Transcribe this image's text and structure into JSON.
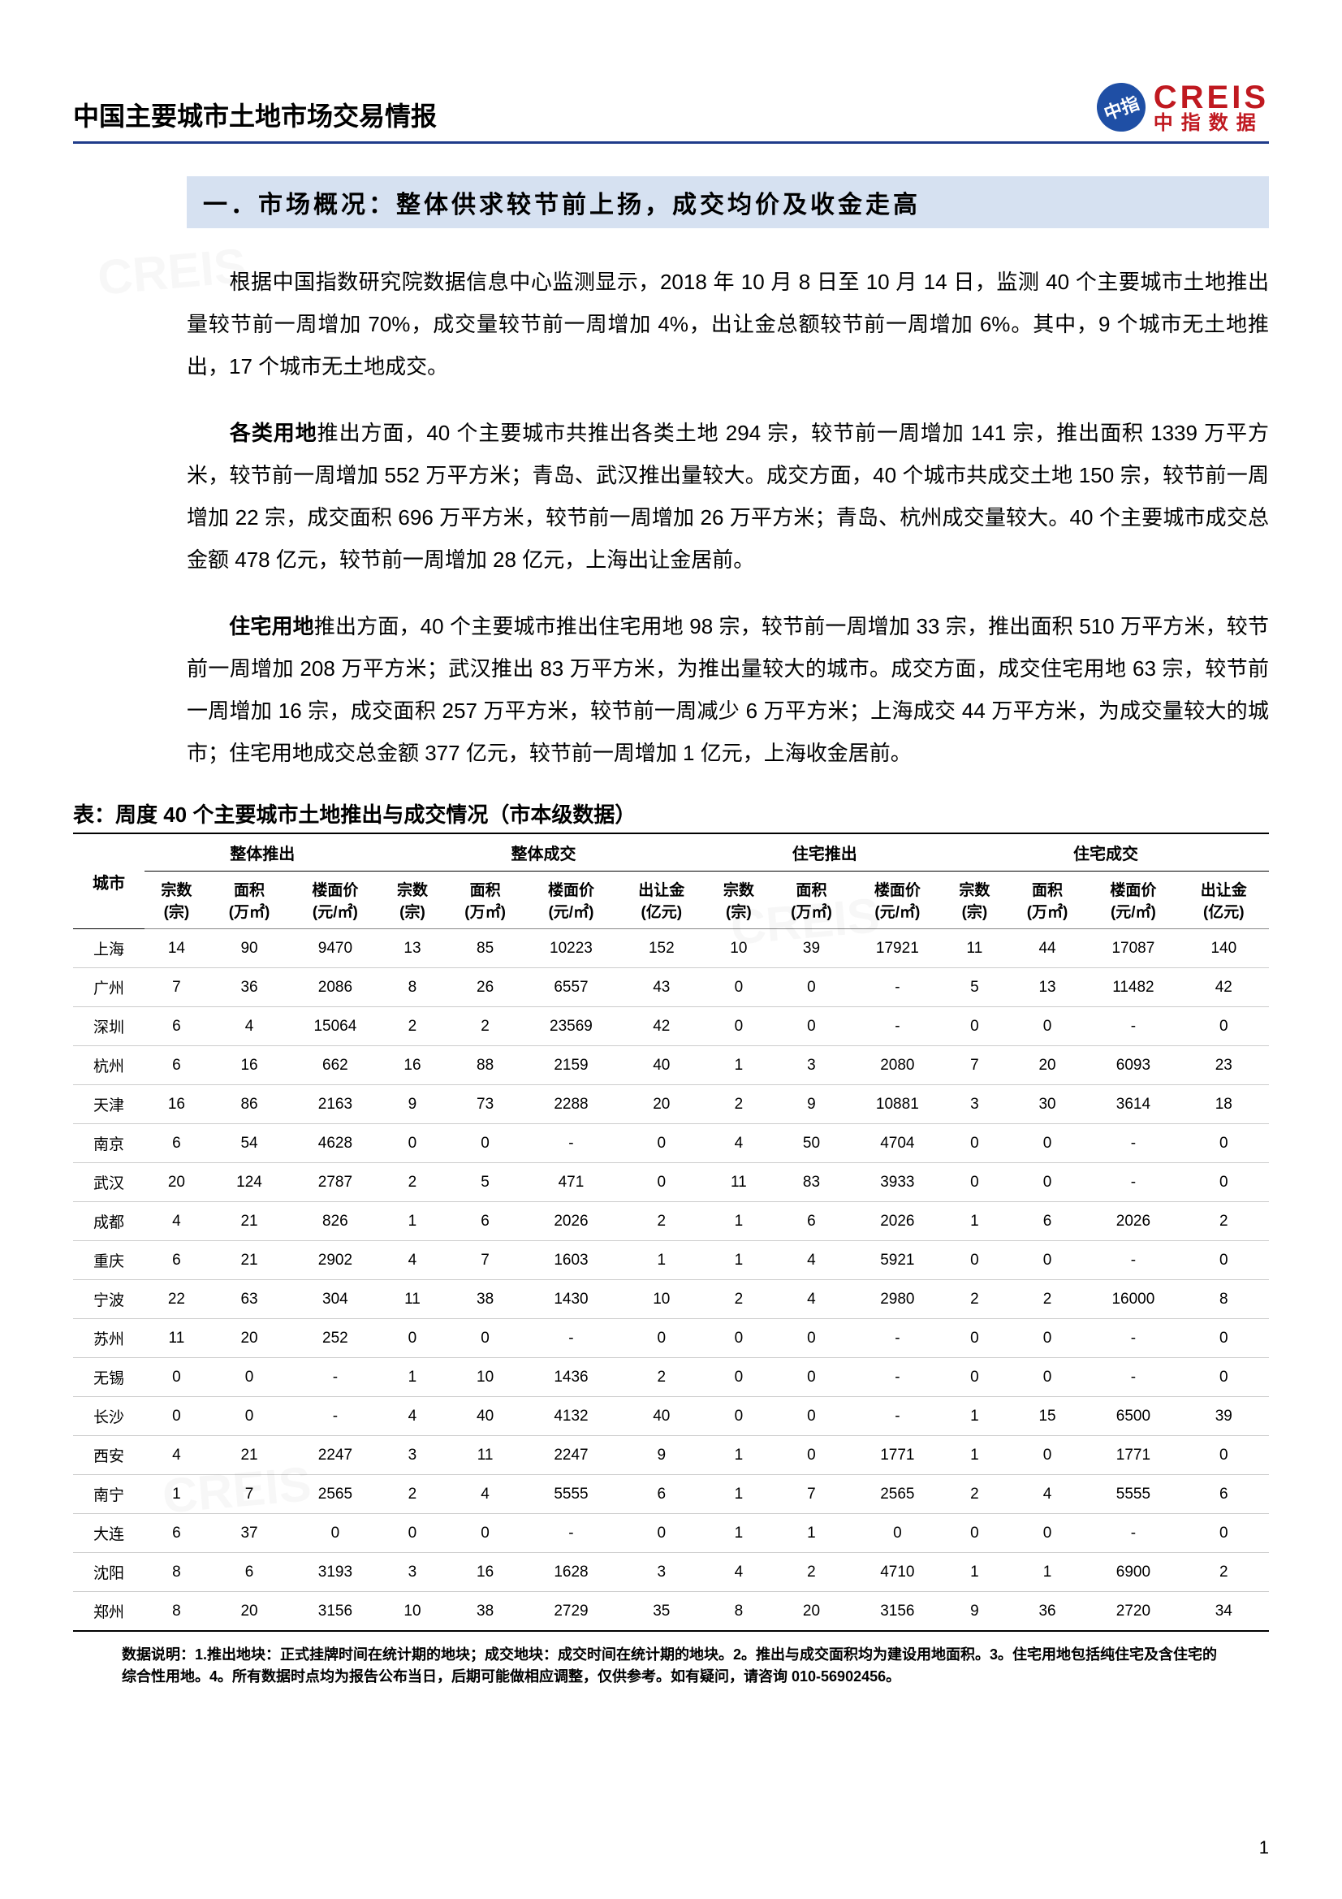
{
  "header": {
    "title": "中国主要城市土地市场交易情报",
    "logo": {
      "badge": "中指",
      "main": "CREIS",
      "sub": "中指数据"
    }
  },
  "section": {
    "title": "一．市场概况：整体供求较节前上扬，成交均价及收金走高"
  },
  "paragraphs": {
    "p1": "根据中国指数研究院数据信息中心监测显示，2018 年 10 月 8 日至 10 月 14 日，监测 40 个主要城市土地推出量较节前一周增加 70%，成交量较节前一周增加 4%，出让金总额较节前一周增加 6%。其中，9 个城市无土地推出，17 个城市无土地成交。",
    "p2a": "各类用地",
    "p2b": "推出方面，40 个主要城市共推出各类土地 294 宗，较节前一周增加 141 宗，推出面积 1339 万平方米，较节前一周增加 552 万平方米；青岛、武汉推出量较大。成交方面，40 个城市共成交土地 150 宗，较节前一周增加 22 宗，成交面积 696 万平方米，较节前一周增加 26 万平方米；青岛、杭州成交量较大。40 个主要城市成交总金额 478 亿元，较节前一周增加 28 亿元，上海出让金居前。",
    "p3a": "住宅用地",
    "p3b": "推出方面，40 个主要城市推出住宅用地 98 宗，较节前一周增加 33 宗，推出面积 510 万平方米，较节前一周增加 208 万平方米；武汉推出 83 万平方米，为推出量较大的城市。成交方面，成交住宅用地 63 宗，较节前一周增加 16 宗，成交面积 257 万平方米，较节前一周减少 6 万平方米；上海成交 44 万平方米，为成交量较大的城市；住宅用地成交总金额 377 亿元，较节前一周增加 1 亿元，上海收金居前。"
  },
  "table": {
    "title": "表：周度 40 个主要城市土地推出与成交情况（市本级数据）",
    "groups": [
      "整体推出",
      "整体成交",
      "住宅推出",
      "住宅成交"
    ],
    "city_header": "城市",
    "sub": {
      "count": "宗数\n(宗)",
      "area": "面积\n(万㎡)",
      "price": "楼面价\n(元/㎡)",
      "rev": "出让金\n(亿元)"
    },
    "rows": [
      {
        "city": "上海",
        "g1": [
          "14",
          "90",
          "9470"
        ],
        "g2": [
          "13",
          "85",
          "10223",
          "152"
        ],
        "g3": [
          "10",
          "39",
          "17921"
        ],
        "g4": [
          "11",
          "44",
          "17087",
          "140"
        ]
      },
      {
        "city": "广州",
        "g1": [
          "7",
          "36",
          "2086"
        ],
        "g2": [
          "8",
          "26",
          "6557",
          "43"
        ],
        "g3": [
          "0",
          "0",
          "-"
        ],
        "g4": [
          "5",
          "13",
          "11482",
          "42"
        ]
      },
      {
        "city": "深圳",
        "g1": [
          "6",
          "4",
          "15064"
        ],
        "g2": [
          "2",
          "2",
          "23569",
          "42"
        ],
        "g3": [
          "0",
          "0",
          "-"
        ],
        "g4": [
          "0",
          "0",
          "-",
          "0"
        ]
      },
      {
        "city": "杭州",
        "g1": [
          "6",
          "16",
          "662"
        ],
        "g2": [
          "16",
          "88",
          "2159",
          "40"
        ],
        "g3": [
          "1",
          "3",
          "2080"
        ],
        "g4": [
          "7",
          "20",
          "6093",
          "23"
        ]
      },
      {
        "city": "天津",
        "g1": [
          "16",
          "86",
          "2163"
        ],
        "g2": [
          "9",
          "73",
          "2288",
          "20"
        ],
        "g3": [
          "2",
          "9",
          "10881"
        ],
        "g4": [
          "3",
          "30",
          "3614",
          "18"
        ]
      },
      {
        "city": "南京",
        "g1": [
          "6",
          "54",
          "4628"
        ],
        "g2": [
          "0",
          "0",
          "-",
          "0"
        ],
        "g3": [
          "4",
          "50",
          "4704"
        ],
        "g4": [
          "0",
          "0",
          "-",
          "0"
        ]
      },
      {
        "city": "武汉",
        "g1": [
          "20",
          "124",
          "2787"
        ],
        "g2": [
          "2",
          "5",
          "471",
          "0"
        ],
        "g3": [
          "11",
          "83",
          "3933"
        ],
        "g4": [
          "0",
          "0",
          "-",
          "0"
        ]
      },
      {
        "city": "成都",
        "g1": [
          "4",
          "21",
          "826"
        ],
        "g2": [
          "1",
          "6",
          "2026",
          "2"
        ],
        "g3": [
          "1",
          "6",
          "2026"
        ],
        "g4": [
          "1",
          "6",
          "2026",
          "2"
        ]
      },
      {
        "city": "重庆",
        "g1": [
          "6",
          "21",
          "2902"
        ],
        "g2": [
          "4",
          "7",
          "1603",
          "1"
        ],
        "g3": [
          "1",
          "4",
          "5921"
        ],
        "g4": [
          "0",
          "0",
          "-",
          "0"
        ]
      },
      {
        "city": "宁波",
        "g1": [
          "22",
          "63",
          "304"
        ],
        "g2": [
          "11",
          "38",
          "1430",
          "10"
        ],
        "g3": [
          "2",
          "4",
          "2980"
        ],
        "g4": [
          "2",
          "2",
          "16000",
          "8"
        ]
      },
      {
        "city": "苏州",
        "g1": [
          "11",
          "20",
          "252"
        ],
        "g2": [
          "0",
          "0",
          "-",
          "0"
        ],
        "g3": [
          "0",
          "0",
          "-"
        ],
        "g4": [
          "0",
          "0",
          "-",
          "0"
        ]
      },
      {
        "city": "无锡",
        "g1": [
          "0",
          "0",
          "-"
        ],
        "g2": [
          "1",
          "10",
          "1436",
          "2"
        ],
        "g3": [
          "0",
          "0",
          "-"
        ],
        "g4": [
          "0",
          "0",
          "-",
          "0"
        ]
      },
      {
        "city": "长沙",
        "g1": [
          "0",
          "0",
          "-"
        ],
        "g2": [
          "4",
          "40",
          "4132",
          "40"
        ],
        "g3": [
          "0",
          "0",
          "-"
        ],
        "g4": [
          "1",
          "15",
          "6500",
          "39"
        ]
      },
      {
        "city": "西安",
        "g1": [
          "4",
          "21",
          "2247"
        ],
        "g2": [
          "3",
          "11",
          "2247",
          "9"
        ],
        "g3": [
          "1",
          "0",
          "1771"
        ],
        "g4": [
          "1",
          "0",
          "1771",
          "0"
        ]
      },
      {
        "city": "南宁",
        "g1": [
          "1",
          "7",
          "2565"
        ],
        "g2": [
          "2",
          "4",
          "5555",
          "6"
        ],
        "g3": [
          "1",
          "7",
          "2565"
        ],
        "g4": [
          "2",
          "4",
          "5555",
          "6"
        ]
      },
      {
        "city": "大连",
        "g1": [
          "6",
          "37",
          "0"
        ],
        "g2": [
          "0",
          "0",
          "-",
          "0"
        ],
        "g3": [
          "1",
          "1",
          "0"
        ],
        "g4": [
          "0",
          "0",
          "-",
          "0"
        ]
      },
      {
        "city": "沈阳",
        "g1": [
          "8",
          "6",
          "3193"
        ],
        "g2": [
          "3",
          "16",
          "1628",
          "3"
        ],
        "g3": [
          "4",
          "2",
          "4710"
        ],
        "g4": [
          "1",
          "1",
          "6900",
          "2"
        ]
      },
      {
        "city": "郑州",
        "g1": [
          "8",
          "20",
          "3156"
        ],
        "g2": [
          "10",
          "38",
          "2729",
          "35"
        ],
        "g3": [
          "8",
          "20",
          "3156"
        ],
        "g4": [
          "9",
          "36",
          "2720",
          "34"
        ]
      }
    ]
  },
  "footnote": "数据说明：1.推出地块：正式挂牌时间在统计期的地块；成交地块：成交时间在统计期的地块。2。推出与成交面积均为建设用地面积。3。住宅用地包括纯住宅及含住宅的综合性用地。4。所有数据时点均为报告公布当日，后期可能做相应调整，仅供参考。如有疑问，请咨询 010-56902456。",
  "page_num": "1",
  "colors": {
    "header_rule": "#1f3b8a",
    "section_bg": "#d6e1f1",
    "logo_red": "#c01920",
    "logo_blue": "#1f4fa5"
  },
  "watermark": "CREIS"
}
